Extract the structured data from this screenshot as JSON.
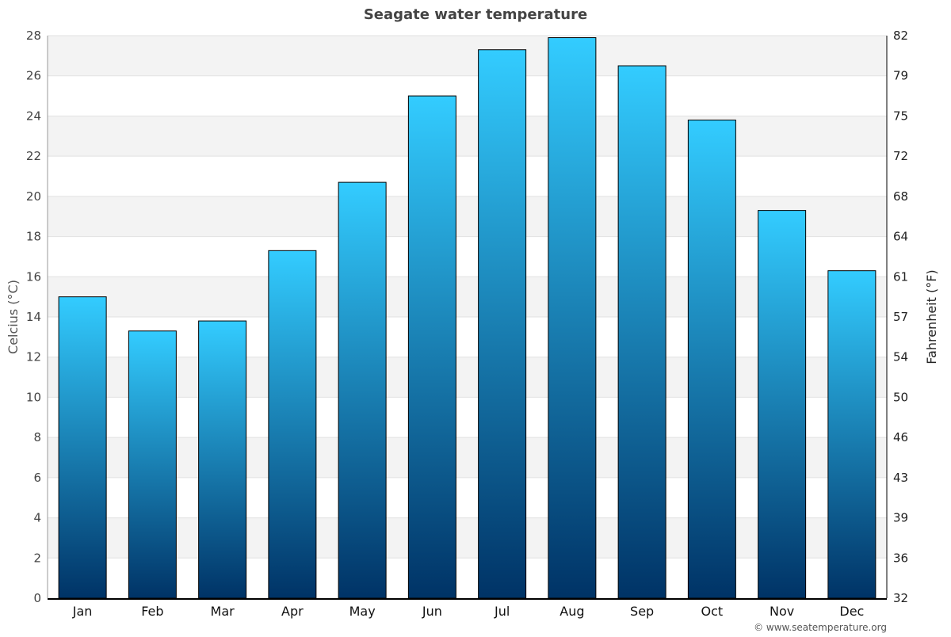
{
  "chart_data": {
    "type": "bar",
    "title": "Seagate water temperature",
    "ylabel": "Celcius (°C)",
    "ylabel_right": "Fahrenheit (°F)",
    "xlabel": "",
    "categories": [
      "Jan",
      "Feb",
      "Mar",
      "Apr",
      "May",
      "Jun",
      "Jul",
      "Aug",
      "Sep",
      "Oct",
      "Nov",
      "Dec"
    ],
    "values": [
      15.0,
      13.3,
      13.8,
      17.3,
      20.7,
      25.0,
      27.3,
      27.9,
      26.5,
      23.8,
      19.3,
      16.3
    ],
    "ylim": [
      0,
      28
    ],
    "yticks": [
      0,
      2,
      4,
      6,
      8,
      10,
      12,
      14,
      16,
      18,
      20,
      22,
      24,
      26,
      28
    ],
    "yticks_right": [
      "32",
      "36",
      "39",
      "43",
      "46",
      "50",
      "54",
      "57",
      "61",
      "64",
      "68",
      "72",
      "75",
      "79",
      "82"
    ],
    "grid": true,
    "bar_gradient": [
      "#33ccff",
      "#003366"
    ],
    "credit": "© www.seatemperature.org"
  }
}
